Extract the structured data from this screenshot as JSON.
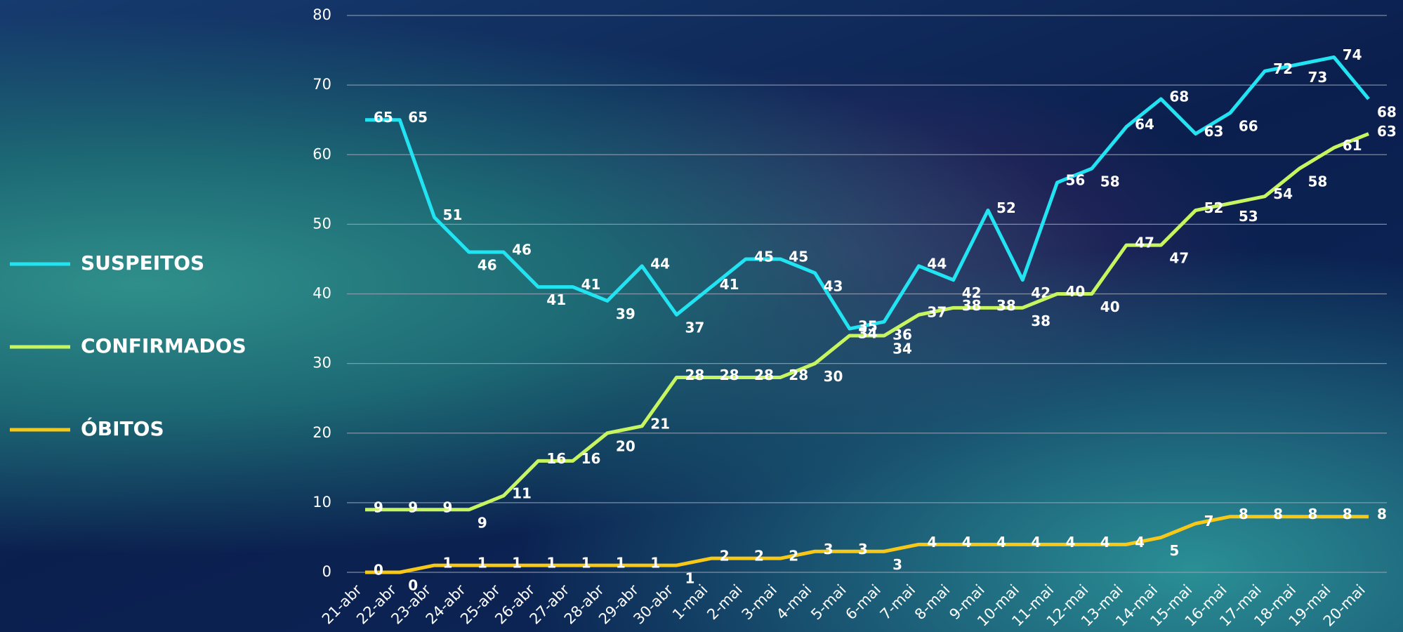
{
  "chart_data": {
    "type": "line",
    "categories": [
      "21-abr",
      "22-abr",
      "23-abr",
      "24-abr",
      "25-abr",
      "26-abr",
      "27-abr",
      "28-abr",
      "29-abr",
      "30-abr",
      "1-mai",
      "2-mai",
      "3-mai",
      "4-mai",
      "5-mai",
      "6-mai",
      "7-mai",
      "8-mai",
      "9-mai",
      "10-mai",
      "11-mai",
      "12-mai",
      "13-mai",
      "14-mai",
      "15-mai",
      "16-mai",
      "17-mai",
      "18-mai",
      "19-mai",
      "20-mai"
    ],
    "series": [
      {
        "name": "SUSPEITOS",
        "color": "#22e3f2",
        "values": [
          65,
          65,
          51,
          46,
          46,
          41,
          41,
          39,
          44,
          37,
          41,
          45,
          45,
          43,
          35,
          36,
          44,
          42,
          52,
          42,
          56,
          58,
          64,
          68,
          63,
          66,
          72,
          73,
          74,
          68
        ]
      },
      {
        "name": "CONFIRMADOS",
        "color": "#c6f561",
        "values": [
          9,
          9,
          9,
          9,
          11,
          16,
          16,
          20,
          21,
          28,
          28,
          28,
          28,
          30,
          34,
          34,
          37,
          38,
          38,
          38,
          40,
          40,
          47,
          47,
          52,
          53,
          54,
          58,
          61,
          63
        ]
      },
      {
        "name": "ÓBITOS",
        "color": "#f6c81a",
        "values": [
          0,
          0,
          1,
          1,
          1,
          1,
          1,
          1,
          1,
          1,
          2,
          2,
          2,
          3,
          3,
          3,
          4,
          4,
          4,
          4,
          4,
          4,
          4,
          5,
          7,
          8,
          8,
          8,
          8,
          8
        ]
      }
    ],
    "ylim": [
      0,
      80
    ],
    "yticks": [
      0,
      10,
      20,
      30,
      40,
      50,
      60,
      70,
      80
    ],
    "grid": true,
    "legend": "left"
  }
}
